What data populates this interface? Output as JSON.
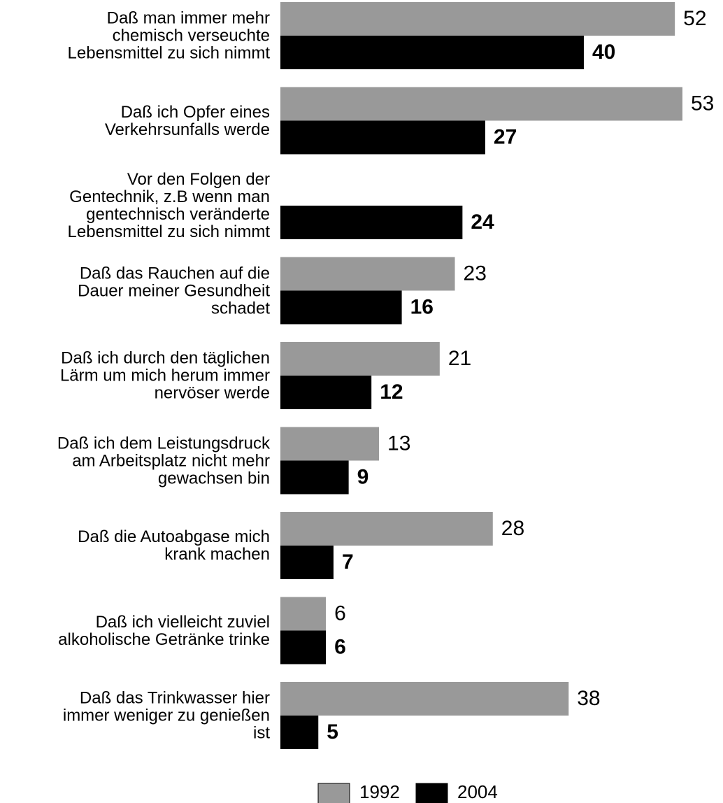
{
  "chart_data": {
    "type": "hbar",
    "categories": [
      "Daß man immer mehr\nchemisch verseuchte\nLebensmittel zu sich nimmt",
      "Daß ich Opfer eines\nVerkehrsunfalls werde",
      "Vor den Folgen der\nGentechnik, z.B wenn man\ngentechnisch veränderte\nLebensmittel zu sich nimmt",
      "Daß das Rauchen auf die\nDauer meiner Gesundheit\nschadet",
      "Daß ich durch den täglichen\nLärm um mich herum immer\nnervöser werde",
      "Daß ich dem Leistungsdruck\nam Arbeitsplatz nicht mehr\ngewachsen bin",
      "Daß die Autoabgase mich\nkrank machen",
      "Daß ich vielleicht zuviel\nalkoholische Getränke trinke",
      "Daß das Trinkwasser hier\nimmer weniger zu genießen\nist"
    ],
    "series": [
      {
        "name": "1992",
        "color": "#999999",
        "values": [
          52,
          53,
          null,
          23,
          21,
          13,
          28,
          6,
          38
        ]
      },
      {
        "name": "2004",
        "color": "#000000",
        "values": [
          40,
          27,
          24,
          16,
          12,
          9,
          7,
          6,
          5
        ]
      }
    ],
    "legend": "bottom"
  }
}
